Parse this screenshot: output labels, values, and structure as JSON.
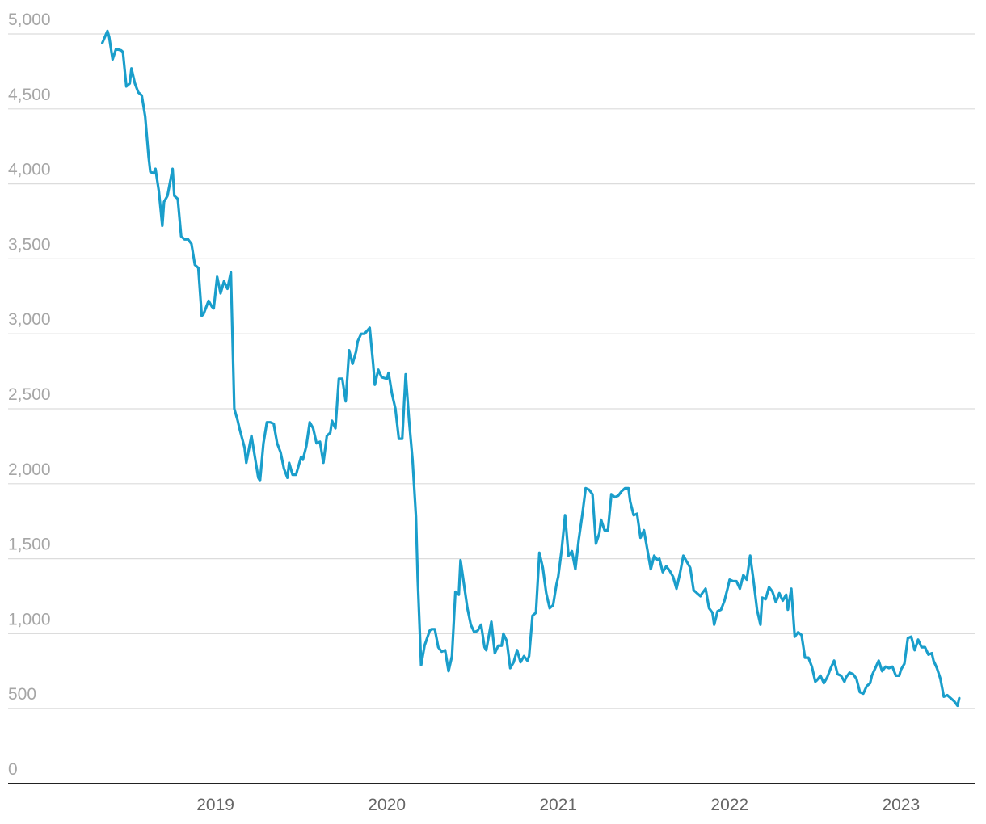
{
  "chart_data": {
    "type": "line",
    "color": "#1a9ecb",
    "grid": true,
    "xlim": [
      2017.79,
      2023.43
    ],
    "xticks": [
      2019,
      2020,
      2021,
      2022,
      2023
    ],
    "ylim": [
      0,
      5000
    ],
    "yticks": [
      0,
      500,
      {
        "value": 1000,
        "label": "1,000"
      },
      {
        "value": 1500,
        "label": "1,500"
      },
      {
        "value": 2000,
        "label": "2,000"
      },
      {
        "value": 2500,
        "label": "2,500"
      },
      {
        "value": 3000,
        "label": "3,000"
      },
      {
        "value": 3500,
        "label": "3,500"
      },
      {
        "value": 4000,
        "label": "4,000"
      },
      {
        "value": 4500,
        "label": "4,500"
      },
      {
        "value": 5000,
        "label": "5,000"
      }
    ],
    "x": [
      2018.34,
      2018.37,
      2018.38,
      2018.4,
      2018.42,
      2018.45,
      2018.46,
      2018.48,
      2018.5,
      2018.51,
      2018.53,
      2018.55,
      2018.57,
      2018.59,
      2018.61,
      2018.62,
      2018.64,
      2018.65,
      2018.67,
      2018.69,
      2018.7,
      2018.72,
      2018.75,
      2018.76,
      2018.78,
      2018.8,
      2018.82,
      2018.84,
      2018.86,
      2018.88,
      2018.9,
      2018.92,
      2018.93,
      2018.96,
      2018.98,
      2018.99,
      2019.01,
      2019.03,
      2019.05,
      2019.07,
      2019.09,
      2019.11,
      2019.13,
      2019.14,
      2019.17,
      2019.18,
      2019.21,
      2019.23,
      2019.25,
      2019.26,
      2019.28,
      2019.3,
      2019.32,
      2019.34,
      2019.36,
      2019.38,
      2019.4,
      2019.42,
      2019.43,
      2019.45,
      2019.47,
      2019.5,
      2019.51,
      2019.53,
      2019.55,
      2019.57,
      2019.59,
      2019.61,
      2019.63,
      2019.65,
      2019.67,
      2019.68,
      2019.7,
      2019.72,
      2019.74,
      2019.76,
      2019.78,
      2019.8,
      2019.82,
      2019.83,
      2019.85,
      2019.87,
      2019.9,
      2019.92,
      2019.93,
      2019.95,
      2019.97,
      2020.0,
      2020.01,
      2020.03,
      2020.05,
      2020.07,
      2020.09,
      2020.11,
      2020.13,
      2020.15,
      2020.17,
      2020.18,
      2020.2,
      2020.22,
      2020.25,
      2020.26,
      2020.28,
      2020.3,
      2020.32,
      2020.34,
      2020.36,
      2020.38,
      2020.4,
      2020.42,
      2020.43,
      2020.45,
      2020.47,
      2020.49,
      2020.51,
      2020.53,
      2020.55,
      2020.57,
      2020.58,
      2020.61,
      2020.63,
      2020.65,
      2020.67,
      2020.68,
      2020.7,
      2020.72,
      2020.74,
      2020.76,
      2020.78,
      2020.8,
      2020.82,
      2020.83,
      2020.85,
      2020.87,
      2020.89,
      2020.91,
      2020.93,
      2020.95,
      2020.97,
      2020.99,
      2021.0,
      2021.02,
      2021.04,
      2021.06,
      2021.08,
      2021.1,
      2021.12,
      2021.14,
      2021.16,
      2021.18,
      2021.2,
      2021.22,
      2021.24,
      2021.25,
      2021.27,
      2021.29,
      2021.31,
      2021.33,
      2021.35,
      2021.37,
      2021.39,
      2021.41,
      2021.42,
      2021.44,
      2021.46,
      2021.48,
      2021.5,
      2021.52,
      2021.54,
      2021.56,
      2021.58,
      2021.59,
      2021.61,
      2021.63,
      2021.65,
      2021.67,
      2021.69,
      2021.71,
      2021.73,
      2021.75,
      2021.77,
      2021.79,
      2021.81,
      2021.83,
      2021.84,
      2021.86,
      2021.88,
      2021.9,
      2021.91,
      2021.93,
      2021.95,
      2021.97,
      2021.99,
      2022.0,
      2022.02,
      2022.04,
      2022.06,
      2022.08,
      2022.1,
      2022.12,
      2022.14,
      2022.16,
      2022.18,
      2022.19,
      2022.21,
      2022.23,
      2022.25,
      2022.27,
      2022.29,
      2022.31,
      2022.33,
      2022.34,
      2022.36,
      2022.38,
      2022.4,
      2022.42,
      2022.44,
      2022.46,
      2022.48,
      2022.5,
      2022.51,
      2022.53,
      2022.55,
      2022.57,
      2022.59,
      2022.61,
      2022.63,
      2022.65,
      2022.67,
      2022.68,
      2022.7,
      2022.72,
      2022.74,
      2022.76,
      2022.78,
      2022.8,
      2022.82,
      2022.83,
      2022.85,
      2022.87,
      2022.89,
      2022.91,
      2022.93,
      2022.95,
      2022.97,
      2022.99,
      2023.0,
      2023.02,
      2023.04,
      2023.06,
      2023.08,
      2023.1,
      2023.12,
      2023.14,
      2023.16,
      2023.18,
      2023.19,
      2023.21,
      2023.23,
      2023.25,
      2023.27,
      2023.29,
      2023.31,
      2023.33,
      2023.34
    ],
    "values": [
      4940,
      5020,
      4980,
      4830,
      4900,
      4890,
      4880,
      4650,
      4670,
      4770,
      4670,
      4610,
      4590,
      4450,
      4180,
      4080,
      4070,
      4100,
      3950,
      3720,
      3880,
      3920,
      4100,
      3920,
      3900,
      3650,
      3630,
      3630,
      3600,
      3460,
      3440,
      3120,
      3130,
      3220,
      3180,
      3170,
      3380,
      3270,
      3350,
      3300,
      3410,
      2500,
      2420,
      2370,
      2240,
      2140,
      2320,
      2180,
      2040,
      2020,
      2270,
      2410,
      2410,
      2400,
      2270,
      2210,
      2100,
      2040,
      2140,
      2060,
      2060,
      2180,
      2160,
      2250,
      2410,
      2370,
      2270,
      2280,
      2140,
      2320,
      2340,
      2420,
      2370,
      2700,
      2700,
      2550,
      2890,
      2800,
      2880,
      2950,
      3000,
      3000,
      3040,
      2800,
      2660,
      2760,
      2710,
      2700,
      2740,
      2600,
      2500,
      2300,
      2300,
      2730,
      2420,
      2160,
      1780,
      1370,
      790,
      920,
      1020,
      1030,
      1030,
      910,
      880,
      890,
      750,
      850,
      1280,
      1260,
      1490,
      1330,
      1170,
      1060,
      1010,
      1020,
      1060,
      910,
      890,
      1080,
      870,
      920,
      920,
      1000,
      950,
      770,
      810,
      890,
      810,
      850,
      820,
      850,
      1120,
      1140,
      1540,
      1440,
      1270,
      1170,
      1190,
      1330,
      1380,
      1560,
      1790,
      1520,
      1550,
      1430,
      1630,
      1790,
      1970,
      1960,
      1930,
      1600,
      1670,
      1760,
      1690,
      1690,
      1930,
      1910,
      1920,
      1950,
      1970,
      1970,
      1880,
      1790,
      1800,
      1640,
      1690,
      1560,
      1430,
      1520,
      1490,
      1500,
      1410,
      1450,
      1420,
      1380,
      1300,
      1400,
      1520,
      1480,
      1440,
      1290,
      1270,
      1250,
      1270,
      1300,
      1170,
      1140,
      1060,
      1150,
      1160,
      1220,
      1310,
      1360,
      1350,
      1350,
      1300,
      1390,
      1360,
      1520,
      1350,
      1160,
      1060,
      1240,
      1230,
      1310,
      1280,
      1210,
      1270,
      1220,
      1260,
      1160,
      1300,
      980,
      1010,
      990,
      840,
      840,
      780,
      680,
      690,
      720,
      670,
      710,
      770,
      820,
      730,
      720,
      680,
      710,
      740,
      730,
      700,
      610,
      600,
      650,
      670,
      720,
      770,
      820,
      750,
      780,
      770,
      780,
      720,
      720,
      760,
      800,
      970,
      980,
      890,
      960,
      910,
      910,
      860,
      870,
      820,
      770,
      700,
      580,
      590,
      570,
      550,
      520,
      570
    ]
  }
}
